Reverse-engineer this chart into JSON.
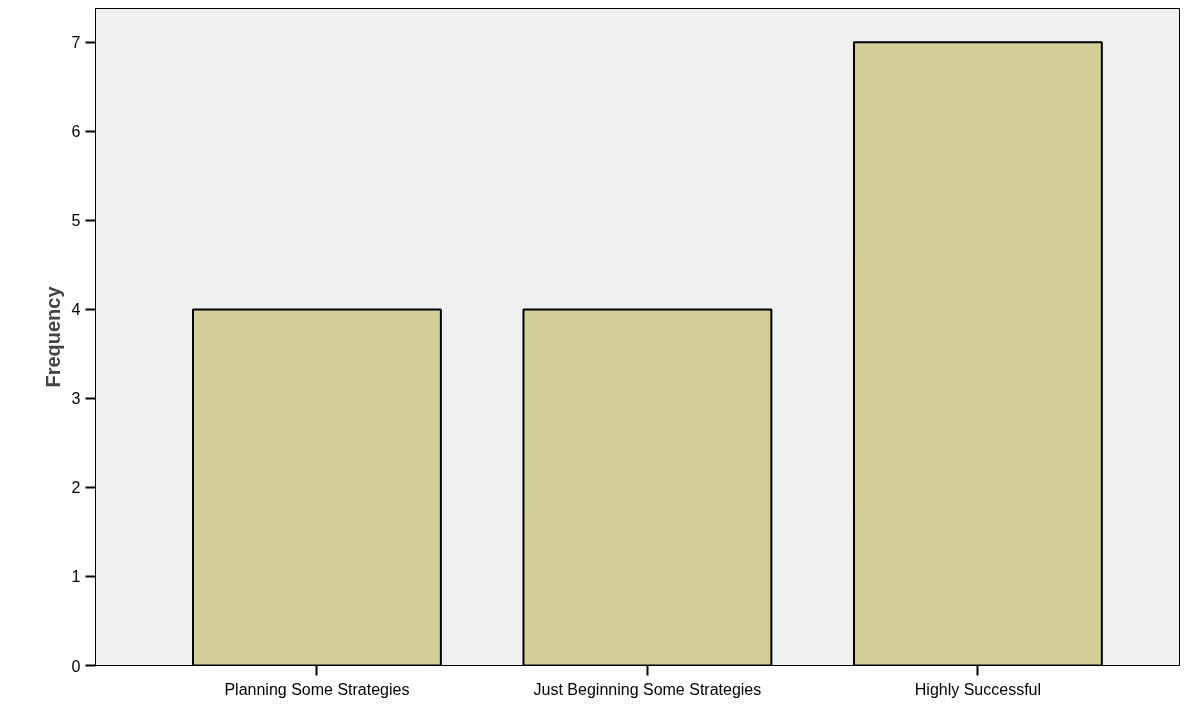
{
  "chart_data": {
    "type": "bar",
    "ylabel": "Frequency",
    "categories": [
      "Planning Some Strategies",
      "Just Beginning Some Strategies",
      "Highly Successful"
    ],
    "values": [
      4,
      4,
      7
    ],
    "color": "#d3ce97",
    "ylim": [
      0,
      7.38
    ],
    "yticks": [
      0,
      1,
      2,
      3,
      4,
      5,
      6,
      7
    ],
    "grid": false
  }
}
